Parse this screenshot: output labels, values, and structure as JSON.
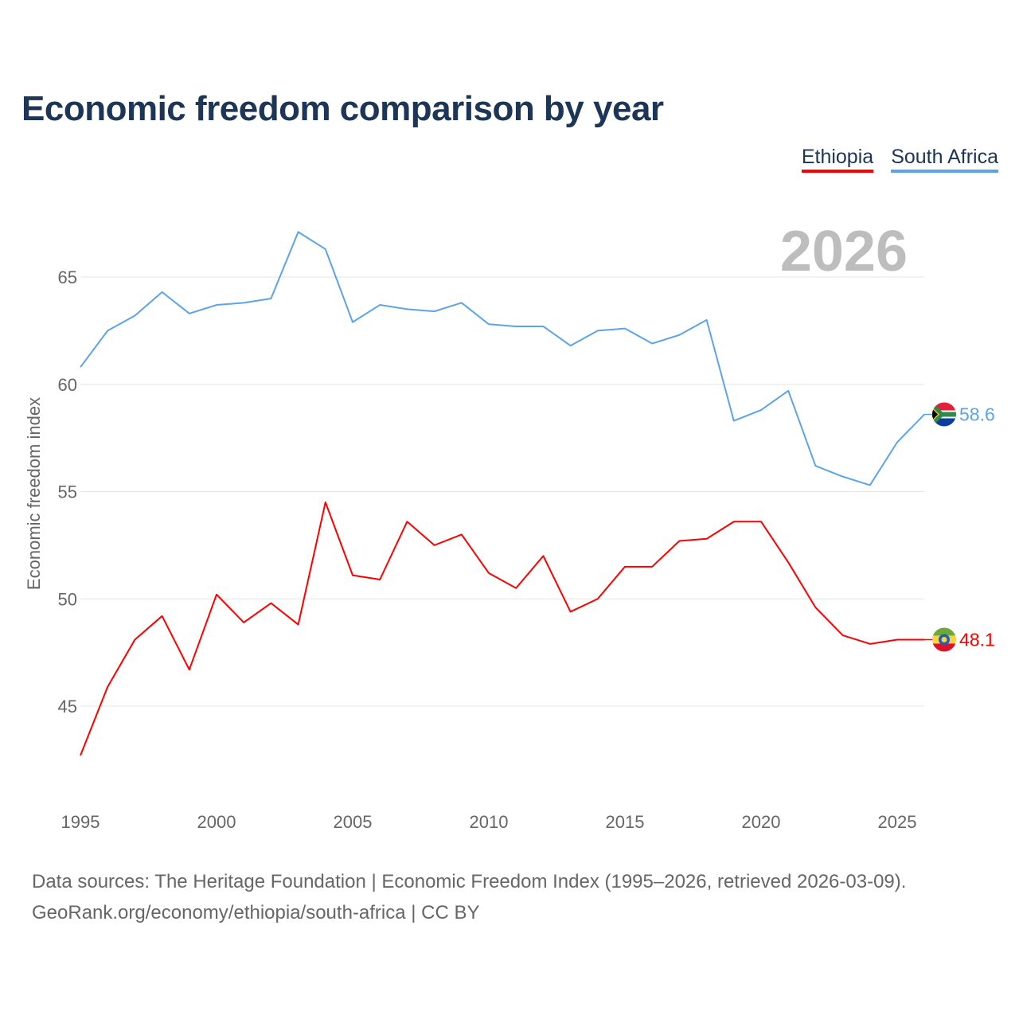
{
  "title": "Economic freedom comparison by year",
  "year_watermark": "2026",
  "source_line1": "Data sources: The Heritage Foundation | Economic Freedom Index (1995–2026, retrieved 2026-03-09).",
  "source_line2": "GeoRank.org/economy/ethiopia/south-africa | CC BY",
  "chart_data": {
    "type": "line",
    "title": "Economic freedom comparison by year",
    "xlabel": "",
    "ylabel": "Economic freedom index",
    "x": [
      1995,
      1996,
      1997,
      1998,
      1999,
      2000,
      2001,
      2002,
      2003,
      2004,
      2005,
      2006,
      2007,
      2008,
      2009,
      2010,
      2011,
      2012,
      2013,
      2014,
      2015,
      2016,
      2017,
      2018,
      2019,
      2020,
      2021,
      2022,
      2023,
      2024,
      2025,
      2026
    ],
    "xticks": [
      "1995",
      "2000",
      "2005",
      "2010",
      "2015",
      "2020",
      "2025"
    ],
    "yticks": [
      "45",
      "50",
      "55",
      "60",
      "65"
    ],
    "xlim": [
      1995,
      2026
    ],
    "ylim": [
      42.5,
      68
    ],
    "grid": true,
    "legend_position": "top-right",
    "series": [
      {
        "name": "Ethiopia",
        "color": "#ff0000",
        "end_label": "48.1",
        "values": [
          42.7,
          45.9,
          48.1,
          49.2,
          46.7,
          50.2,
          48.9,
          49.8,
          48.8,
          54.5,
          51.1,
          50.9,
          53.6,
          52.5,
          53.0,
          51.2,
          50.5,
          52.0,
          49.4,
          50.0,
          51.5,
          51.5,
          52.7,
          52.8,
          53.6,
          53.6,
          51.7,
          49.6,
          48.3,
          47.9,
          48.1,
          48.1
        ]
      },
      {
        "name": "South Africa",
        "color": "#5ba4e6",
        "end_label": "58.6",
        "values": [
          60.8,
          62.5,
          63.2,
          64.3,
          63.3,
          63.7,
          63.8,
          64.0,
          67.1,
          66.3,
          62.9,
          63.7,
          63.5,
          63.4,
          63.8,
          62.8,
          62.7,
          62.7,
          61.8,
          62.5,
          62.6,
          61.9,
          62.3,
          63.0,
          58.3,
          58.8,
          59.7,
          56.2,
          55.7,
          55.3,
          57.3,
          58.6
        ]
      }
    ]
  }
}
